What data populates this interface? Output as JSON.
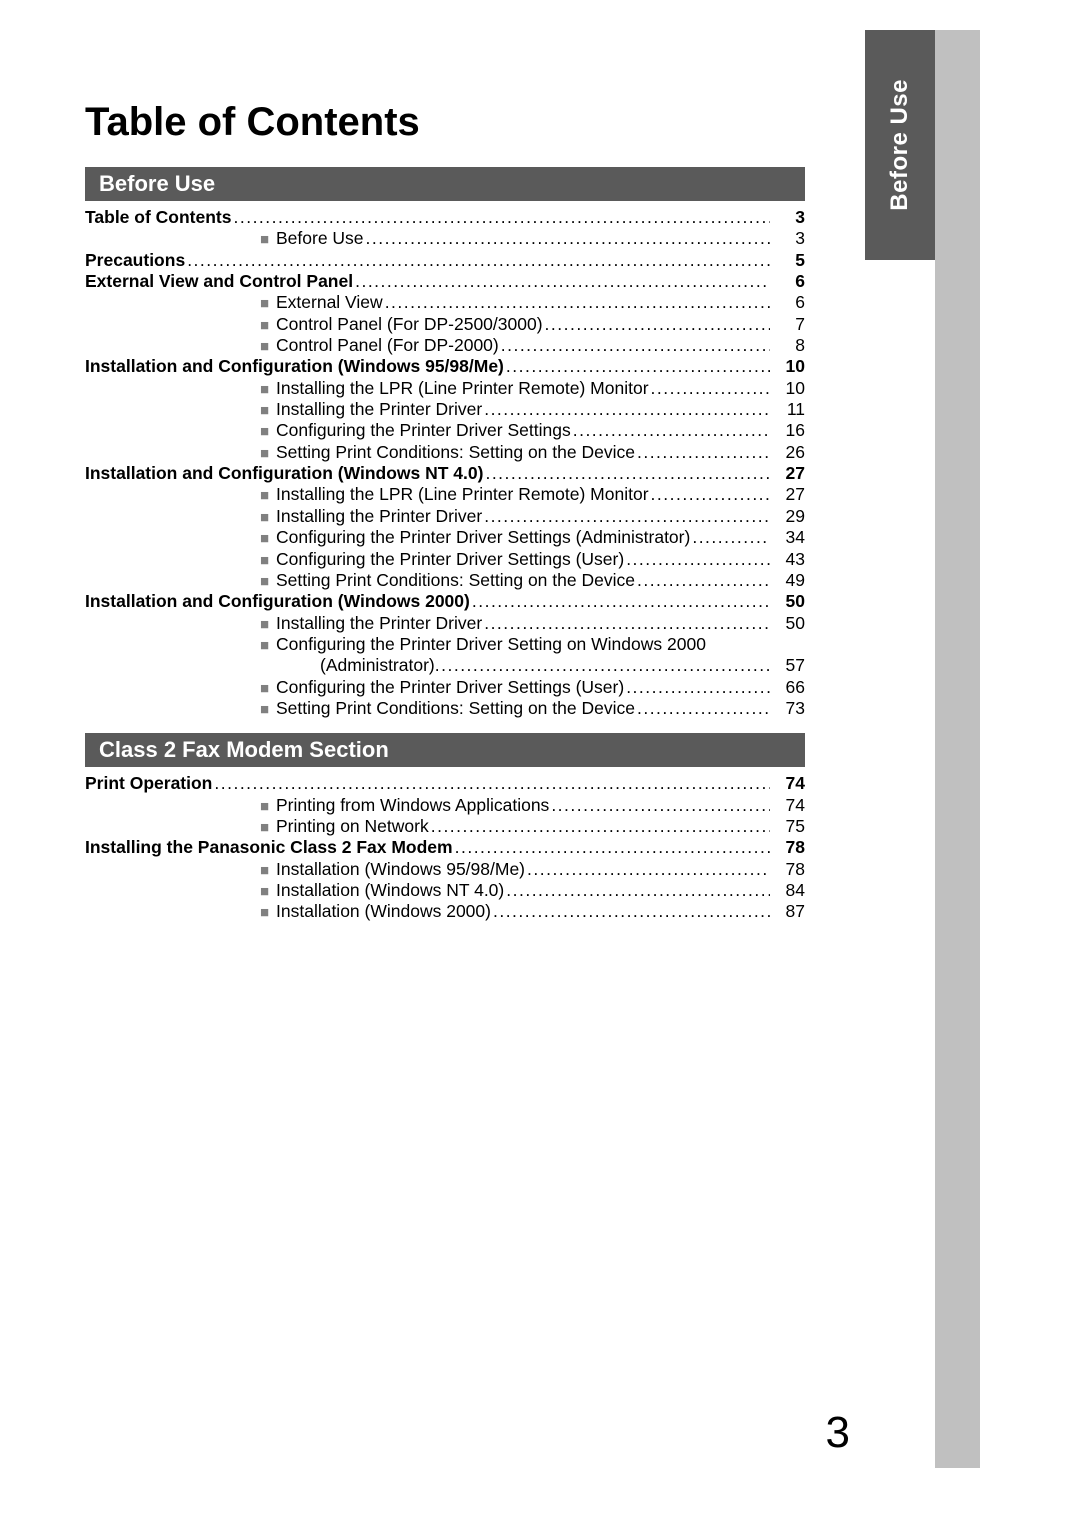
{
  "page_title": "Table of Contents",
  "side_tab": "Before Use",
  "page_number": "3",
  "colors": {
    "section_bar_bg": "#5a5a5a",
    "bullet": "#808080",
    "side_strip": "#c0c0c0",
    "text": "#000000",
    "white": "#ffffff"
  },
  "sections": {
    "s1": "Before Use",
    "s2": "Class 2 Fax Modem Section"
  },
  "e": {
    "toc": {
      "label": "Table of Contents",
      "page": "3"
    },
    "before_use": {
      "label": "Before Use",
      "page": "3"
    },
    "precautions": {
      "label": "Precautions",
      "page": "5"
    },
    "ext_view_panel": {
      "label": "External View and Control Panel",
      "page": "6"
    },
    "ext_view": {
      "label": "External View",
      "page": "6"
    },
    "cp_2500": {
      "label": "Control Panel (For DP-2500/3000)",
      "page": "7"
    },
    "cp_2000": {
      "label": "Control Panel (For DP-2000)",
      "page": "8"
    },
    "inst_9598": {
      "label": "Installation and Configuration (Windows 95/98/Me)",
      "page": "10"
    },
    "lpr1": {
      "label": "Installing the LPR (Line Printer Remote) Monitor",
      "page": "10"
    },
    "drv1": {
      "label": "Installing the Printer Driver",
      "page": "11"
    },
    "cfg1": {
      "label": "Configuring the Printer Driver Settings",
      "page": "16"
    },
    "set1": {
      "label": "Setting Print Conditions: Setting on the Device",
      "page": "26"
    },
    "inst_nt": {
      "label": "Installation and Configuration (Windows NT 4.0)",
      "page": "27"
    },
    "lpr2": {
      "label": "Installing the LPR (Line Printer Remote) Monitor",
      "page": "27"
    },
    "drv2": {
      "label": "Installing the Printer Driver",
      "page": "29"
    },
    "cfg2a": {
      "label": "Configuring the Printer Driver Settings (Administrator)",
      "page": "34"
    },
    "cfg2u": {
      "label": "Configuring the Printer Driver Settings (User)",
      "page": "43"
    },
    "set2": {
      "label": "Setting Print Conditions: Setting on the Device",
      "page": "49"
    },
    "inst_2000": {
      "label": "Installation and Configuration (Windows 2000)",
      "page": "50"
    },
    "drv3": {
      "label": "Installing the Printer Driver",
      "page": "50"
    },
    "cfg3a_line1": {
      "label": "Configuring the Printer Driver Setting on Windows 2000"
    },
    "cfg3a_line2": {
      "label": "(Administrator)",
      "page": "57"
    },
    "cfg3u": {
      "label": "Configuring the Printer Driver Settings (User)",
      "page": "66"
    },
    "set3": {
      "label": "Setting Print Conditions: Setting on the Device",
      "page": "73"
    },
    "print_op": {
      "label": "Print Operation",
      "page": "74"
    },
    "print_win": {
      "label": "Printing from Windows Applications",
      "page": "74"
    },
    "print_net": {
      "label": "Printing on Network",
      "page": "75"
    },
    "inst_modem": {
      "label": "Installing the Panasonic Class 2 Fax Modem",
      "page": "78"
    },
    "m_9598": {
      "label": "Installation (Windows 95/98/Me)",
      "page": "78"
    },
    "m_nt": {
      "label": "Installation (Windows NT 4.0)",
      "page": "84"
    },
    "m_2000": {
      "label": "Installation (Windows 2000)",
      "page": "87"
    }
  }
}
